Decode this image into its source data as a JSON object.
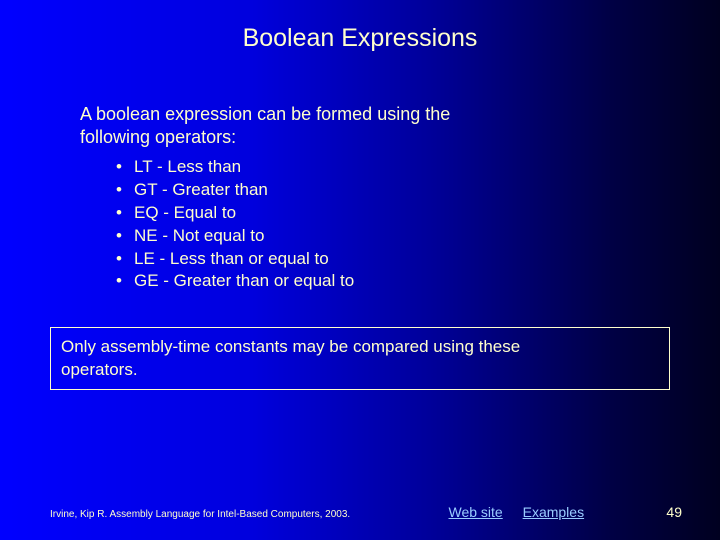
{
  "title": "Boolean Expressions",
  "intro_line1": "A boolean expression can be formed using the",
  "intro_line2": "following operators:",
  "bullets": [
    "LT - Less than",
    "GT - Greater than",
    "EQ - Equal to",
    "NE - Not equal to",
    "LE - Less than or equal to",
    "GE - Greater than or equal to"
  ],
  "note_line1": "Only assembly-time constants may be compared using these",
  "note_line2": "operators.",
  "citation": "Irvine, Kip R. Assembly Language for Intel-Based Computers, 2003.",
  "link1": "Web site",
  "link2": "Examples",
  "page_number": "49",
  "colors": {
    "text": "#ffffcc",
    "link": "#99ccff",
    "bg_left": "#0000ff",
    "bg_right": "#000020"
  }
}
